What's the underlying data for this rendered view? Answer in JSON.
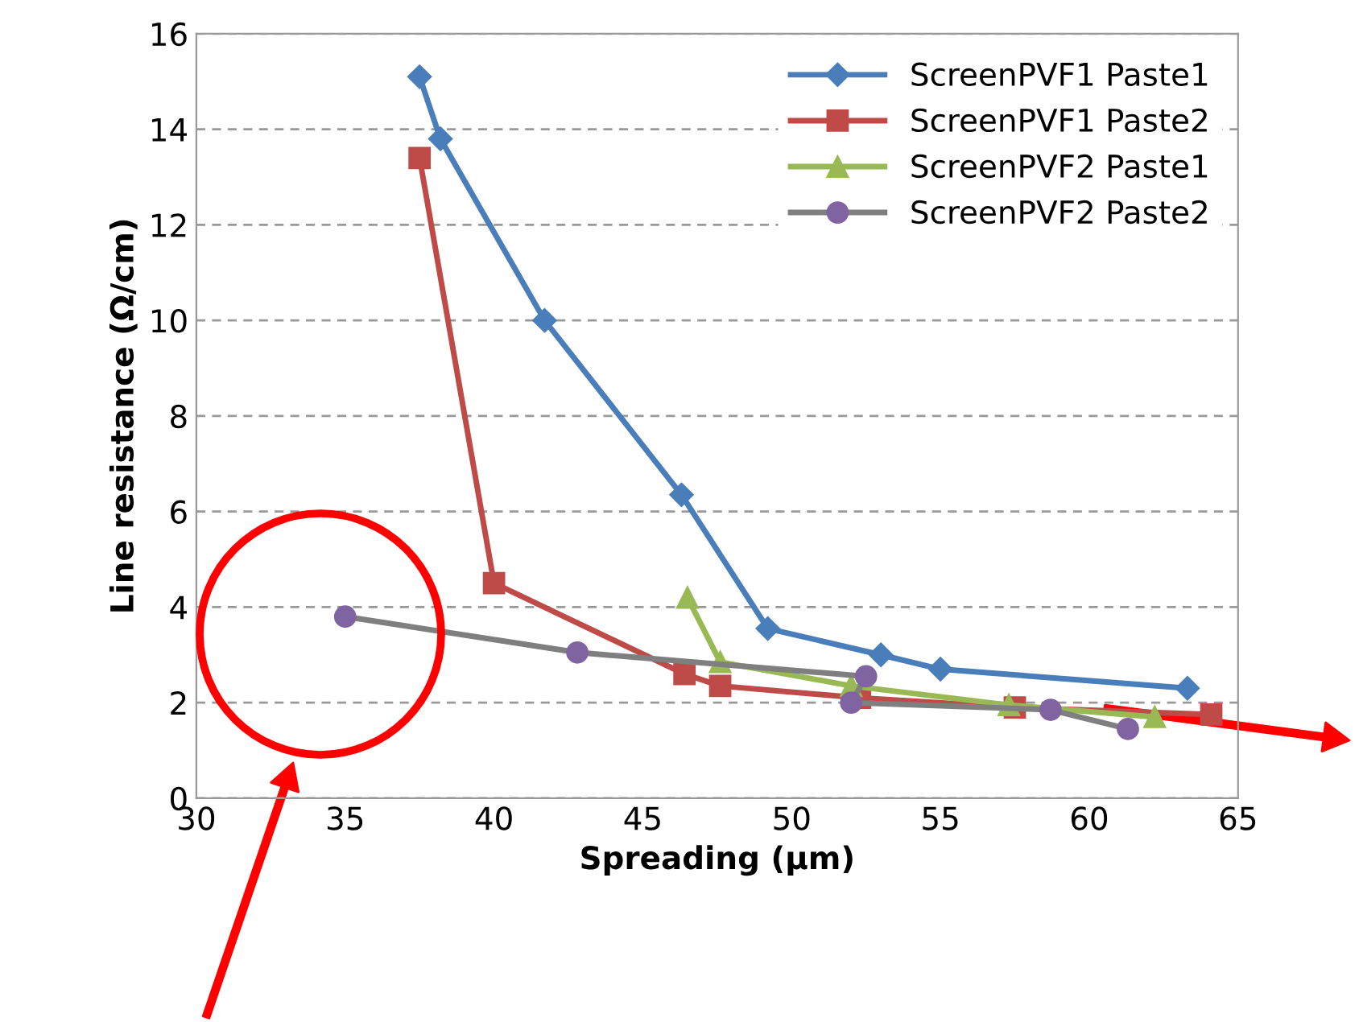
{
  "chart_data": {
    "type": "line",
    "xlabel": "Spreading (µm)",
    "ylabel": "Line resistance (Ω/cm)",
    "xlim": [
      30,
      65
    ],
    "xticks": [
      30,
      35,
      40,
      45,
      50,
      55,
      60,
      65
    ],
    "ylim": [
      0,
      16
    ],
    "yticks": [
      0,
      2,
      4,
      6,
      8,
      10,
      12,
      14,
      16
    ],
    "grid": "y",
    "legend": "top right",
    "line_style": "solid",
    "series": [
      {
        "name": "ScreenPVF1 Paste1",
        "color": "#4a7ebb",
        "marker": "diamond",
        "x": [
          37.5,
          38.2,
          41.7,
          46.3,
          49.2,
          53.0,
          55.0,
          63.3
        ],
        "values": [
          15.1,
          13.8,
          10.0,
          6.35,
          3.55,
          3.0,
          2.7,
          2.3
        ]
      },
      {
        "name": "ScreenPVF1 Paste2",
        "color": "#be4b48",
        "marker": "square",
        "x": [
          37.5,
          40.0,
          46.4,
          47.6,
          52.3,
          57.5,
          64.1
        ],
        "values": [
          13.4,
          4.5,
          2.6,
          2.35,
          2.1,
          1.9,
          1.75
        ]
      },
      {
        "name": "ScreenPVF2 Paste1",
        "color": "#98b954",
        "marker": "triangle",
        "x": [
          46.5,
          47.6,
          52.0,
          57.3,
          62.2
        ],
        "values": [
          4.2,
          2.85,
          2.35,
          1.95,
          1.7
        ]
      },
      {
        "name": "ScreenPVF2 Paste2",
        "color": "#7f7f7f",
        "marker": "circle",
        "x": [
          35.0,
          42.8,
          52.5,
          52.0,
          58.7,
          61.3
        ],
        "values": [
          3.8,
          3.05,
          2.55,
          2.0,
          1.85,
          1.45
        ]
      }
    ]
  }
}
